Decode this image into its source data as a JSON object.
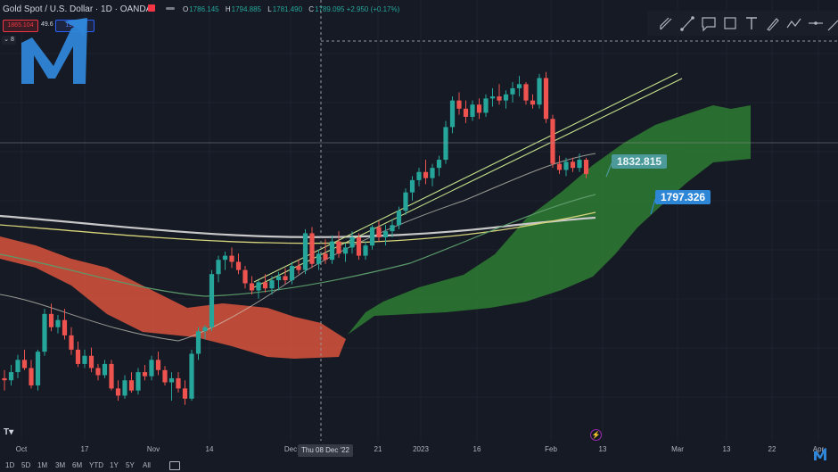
{
  "header": {
    "symbol": "Gold Spot / U.S. Dollar · 1D · OANDA",
    "ohlc": [
      {
        "k": "O",
        "v": "1786.145"
      },
      {
        "k": "H",
        "v": "1794.885"
      },
      {
        "k": "L",
        "v": "1781.490"
      },
      {
        "k": "C",
        "v": "1789.095 +2.950 (+0.17%)"
      }
    ]
  },
  "trade": {
    "sell": "1865.104",
    "spread": "49.6",
    "buy": "1914.6",
    "collapse": "8"
  },
  "price_tags": {
    "tag1": "1832.815",
    "tag2": "1797.326"
  },
  "x_axis": {
    "labels": [
      {
        "t": "Oct"
      },
      {
        "t": "17"
      },
      {
        "t": "Nov"
      },
      {
        "t": "14"
      },
      {
        "t": "Dec"
      },
      {
        "t": "21"
      },
      {
        "t": "2023"
      },
      {
        "t": "16"
      },
      {
        "t": "Feb"
      },
      {
        "t": "13"
      },
      {
        "t": "Mar"
      },
      {
        "t": "13"
      },
      {
        "t": "22"
      },
      {
        "t": "Apr"
      }
    ],
    "crosshair_label": "Thu 08 Dec '22"
  },
  "ranges": [
    "1D",
    "5D",
    "1M",
    "3M",
    "6M",
    "YTD",
    "1Y",
    "5Y",
    "All"
  ],
  "tools": [
    "pen-tool-icon",
    "trend-line-icon",
    "callout-icon",
    "rectangle-icon",
    "text-tool-icon",
    "brush-icon",
    "pattern-icon",
    "horizontal-line-icon",
    "ray-icon"
  ],
  "colors": {
    "background": "#161a25",
    "bull": "#26a69a",
    "bear": "#ef5350",
    "cloud_bull": "#2e7d32",
    "cloud_bear": "#d9543c",
    "ma_white": "#c8c8c8",
    "ma_yellow": "#d6d47a",
    "channel": "#c5e08a"
  },
  "chart_data": {
    "type": "candlestick",
    "candles": [
      [
        1662,
        1670,
        1650,
        1660
      ],
      [
        1660,
        1675,
        1655,
        1668
      ],
      [
        1668,
        1685,
        1662,
        1680
      ],
      [
        1680,
        1690,
        1670,
        1672
      ],
      [
        1672,
        1680,
        1652,
        1655
      ],
      [
        1655,
        1690,
        1650,
        1688
      ],
      [
        1688,
        1730,
        1684,
        1725
      ],
      [
        1725,
        1735,
        1708,
        1712
      ],
      [
        1712,
        1724,
        1706,
        1719
      ],
      [
        1719,
        1730,
        1700,
        1704
      ],
      [
        1704,
        1712,
        1685,
        1690
      ],
      [
        1690,
        1698,
        1673,
        1676
      ],
      [
        1676,
        1690,
        1672,
        1684
      ],
      [
        1684,
        1692,
        1668,
        1672
      ],
      [
        1672,
        1676,
        1660,
        1665
      ],
      [
        1665,
        1680,
        1662,
        1676
      ],
      [
        1676,
        1680,
        1650,
        1652
      ],
      [
        1652,
        1660,
        1640,
        1645
      ],
      [
        1645,
        1665,
        1642,
        1660
      ],
      [
        1660,
        1668,
        1648,
        1650
      ],
      [
        1650,
        1672,
        1646,
        1668
      ],
      [
        1668,
        1675,
        1660,
        1664
      ],
      [
        1664,
        1684,
        1660,
        1680
      ],
      [
        1680,
        1688,
        1665,
        1670
      ],
      [
        1670,
        1674,
        1655,
        1658
      ],
      [
        1658,
        1668,
        1640,
        1662
      ],
      [
        1662,
        1668,
        1648,
        1652
      ],
      [
        1652,
        1660,
        1636,
        1642
      ],
      [
        1642,
        1690,
        1640,
        1686
      ],
      [
        1686,
        1712,
        1680,
        1708
      ],
      [
        1708,
        1714,
        1700,
        1712
      ],
      [
        1712,
        1768,
        1708,
        1764
      ],
      [
        1764,
        1782,
        1756,
        1778
      ],
      [
        1778,
        1786,
        1768,
        1782
      ],
      [
        1782,
        1790,
        1770,
        1776
      ],
      [
        1776,
        1784,
        1764,
        1768
      ],
      [
        1768,
        1772,
        1750,
        1755
      ],
      [
        1755,
        1762,
        1744,
        1748
      ],
      [
        1748,
        1758,
        1740,
        1756
      ],
      [
        1756,
        1764,
        1746,
        1750
      ],
      [
        1750,
        1762,
        1744,
        1758
      ],
      [
        1758,
        1766,
        1748,
        1762
      ],
      [
        1762,
        1770,
        1754,
        1758
      ],
      [
        1758,
        1776,
        1754,
        1772
      ],
      [
        1772,
        1778,
        1764,
        1768
      ],
      [
        1768,
        1808,
        1764,
        1804
      ],
      [
        1804,
        1810,
        1770,
        1774
      ],
      [
        1774,
        1788,
        1768,
        1784
      ],
      [
        1784,
        1798,
        1774,
        1778
      ],
      [
        1778,
        1802,
        1774,
        1796
      ],
      [
        1796,
        1806,
        1780,
        1784
      ],
      [
        1784,
        1794,
        1776,
        1790
      ],
      [
        1790,
        1806,
        1784,
        1800
      ],
      [
        1800,
        1804,
        1778,
        1782
      ],
      [
        1782,
        1796,
        1778,
        1792
      ],
      [
        1792,
        1812,
        1788,
        1810
      ],
      [
        1810,
        1816,
        1796,
        1800
      ],
      [
        1800,
        1812,
        1792,
        1806
      ],
      [
        1806,
        1818,
        1800,
        1812
      ],
      [
        1812,
        1830,
        1808,
        1826
      ],
      [
        1826,
        1848,
        1822,
        1844
      ],
      [
        1844,
        1860,
        1836,
        1856
      ],
      [
        1856,
        1868,
        1850,
        1864
      ],
      [
        1864,
        1876,
        1852,
        1858
      ],
      [
        1858,
        1872,
        1850,
        1868
      ],
      [
        1868,
        1880,
        1860,
        1876
      ],
      [
        1876,
        1914,
        1872,
        1908
      ],
      [
        1908,
        1938,
        1902,
        1934
      ],
      [
        1934,
        1942,
        1920,
        1926
      ],
      [
        1926,
        1934,
        1912,
        1918
      ],
      [
        1918,
        1934,
        1914,
        1930
      ],
      [
        1930,
        1936,
        1916,
        1922
      ],
      [
        1922,
        1940,
        1918,
        1936
      ],
      [
        1936,
        1946,
        1928,
        1938
      ],
      [
        1938,
        1950,
        1930,
        1934
      ],
      [
        1934,
        1944,
        1926,
        1940
      ],
      [
        1940,
        1952,
        1932,
        1946
      ],
      [
        1946,
        1958,
        1938,
        1950
      ],
      [
        1950,
        1952,
        1930,
        1934
      ],
      [
        1934,
        1940,
        1926,
        1930
      ],
      [
        1930,
        1960,
        1926,
        1956
      ],
      [
        1956,
        1962,
        1912,
        1916
      ],
      [
        1916,
        1920,
        1868,
        1872
      ],
      [
        1872,
        1880,
        1862,
        1866
      ],
      [
        1866,
        1878,
        1860,
        1874
      ],
      [
        1874,
        1878,
        1864,
        1868
      ],
      [
        1868,
        1882,
        1864,
        1876
      ],
      [
        1876,
        1878,
        1858,
        1862
      ]
    ],
    "ichimoku_cloud": {
      "bear_to_bull_cross": "early Dec '22",
      "projection": "to mid-Mar"
    },
    "moving_averages": [
      "white (long)",
      "yellow",
      "green",
      "white (short)"
    ],
    "price_labels": [
      1832.815,
      1797.326
    ],
    "ylim": [
      1620,
      1980
    ]
  }
}
